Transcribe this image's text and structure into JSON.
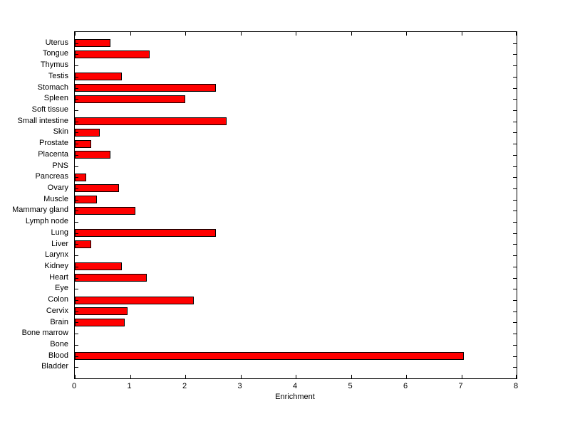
{
  "chart_data": {
    "type": "bar",
    "orientation": "horizontal",
    "title": "",
    "xlabel": "Enrichment",
    "ylabel": "",
    "xlim": [
      0,
      8
    ],
    "xticks": [
      0,
      1,
      2,
      3,
      4,
      5,
      6,
      7,
      8
    ],
    "grid": false,
    "legend": false,
    "bar_color": "#ff0000",
    "bar_edge_color": "#000000",
    "axis_color": "#000000",
    "background_color": "#ffffff",
    "categories": [
      "Uterus",
      "Tongue",
      "Thymus",
      "Testis",
      "Stomach",
      "Spleen",
      "Soft tissue",
      "Small intestine",
      "Skin",
      "Prostate",
      "Placenta",
      "PNS",
      "Pancreas",
      "Ovary",
      "Muscle",
      "Mammary gland",
      "Lymph node",
      "Lung",
      "Liver",
      "Larynx",
      "Kidney",
      "Heart",
      "Eye",
      "Colon",
      "Cervix",
      "Brain",
      "Bone marrow",
      "Bone",
      "Blood",
      "Bladder"
    ],
    "values": [
      0.65,
      1.35,
      0,
      0.85,
      2.55,
      2.0,
      0,
      2.75,
      0.45,
      0.3,
      0.65,
      0,
      0.2,
      0.8,
      0.4,
      1.1,
      0,
      2.55,
      0.3,
      0,
      0.85,
      1.3,
      0,
      2.15,
      0.95,
      0.9,
      0,
      0,
      7.05,
      0
    ]
  }
}
